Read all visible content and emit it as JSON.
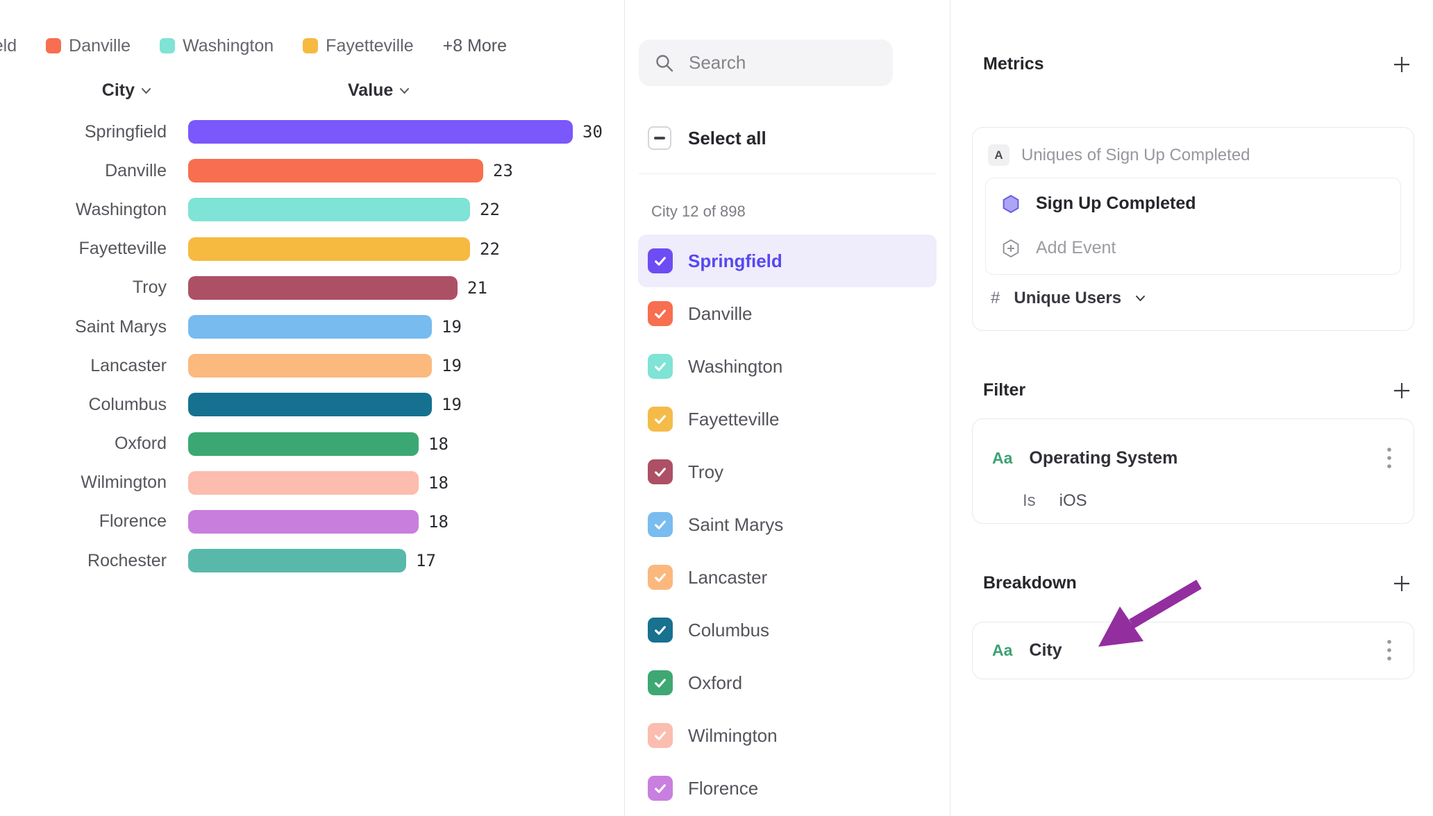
{
  "legend": {
    "items": [
      {
        "label": "Springfield",
        "color": "#7A58FB",
        "clipped": true
      },
      {
        "label": "Danville",
        "color": "#F76E50",
        "clipped": false
      },
      {
        "label": "Washington",
        "color": "#7FE3D5",
        "clipped": false
      },
      {
        "label": "Fayetteville",
        "color": "#F6BA41",
        "clipped": false
      }
    ],
    "more_label": "+8 More"
  },
  "chart_data": {
    "type": "bar",
    "orientation": "horizontal",
    "columns": {
      "category": "City",
      "value": "Value"
    },
    "categories": [
      "Springfield",
      "Danville",
      "Washington",
      "Fayetteville",
      "Troy",
      "Saint Marys",
      "Lancaster",
      "Columbus",
      "Oxford",
      "Wilmington",
      "Florence",
      "Rochester"
    ],
    "values": [
      30,
      23,
      22,
      22,
      21,
      19,
      19,
      19,
      18,
      18,
      18,
      17
    ],
    "colors": [
      "#7A58FB",
      "#F76E50",
      "#7FE3D5",
      "#F6BA41",
      "#AD5065",
      "#77BBEF",
      "#FBB97E",
      "#15718F",
      "#3BA873",
      "#FCBCAE",
      "#C87EDD",
      "#58B9AB"
    ],
    "xlim": [
      0,
      30
    ],
    "grid": false,
    "title": ""
  },
  "city_panel": {
    "search_placeholder": "Search",
    "select_all_label": "Select all",
    "count_label": "City 12 of 898",
    "items": [
      {
        "label": "Springfield",
        "color": "#6D4DF3",
        "checked": true,
        "selected": true
      },
      {
        "label": "Danville",
        "color": "#F76E50",
        "checked": true,
        "selected": false
      },
      {
        "label": "Washington",
        "color": "#7FE3D5",
        "checked": true,
        "selected": false
      },
      {
        "label": "Fayetteville",
        "color": "#F5BB49",
        "checked": true,
        "selected": false
      },
      {
        "label": "Troy",
        "color": "#AD5065",
        "checked": true,
        "selected": false
      },
      {
        "label": "Saint Marys",
        "color": "#79BCEF",
        "checked": true,
        "selected": false
      },
      {
        "label": "Lancaster",
        "color": "#FAB87D",
        "checked": true,
        "selected": false
      },
      {
        "label": "Columbus",
        "color": "#17718F",
        "checked": true,
        "selected": false
      },
      {
        "label": "Oxford",
        "color": "#3EA873",
        "checked": true,
        "selected": false
      },
      {
        "label": "Wilmington",
        "color": "#FBBDAF",
        "checked": true,
        "selected": false
      },
      {
        "label": "Florence",
        "color": "#C97FDF",
        "checked": true,
        "selected": false
      }
    ]
  },
  "inspector": {
    "metrics": {
      "title": "Metrics",
      "badge": "A",
      "summary": "Uniques of Sign Up Completed",
      "event_name": "Sign Up Completed",
      "add_event_label": "Add Event",
      "hash": "#",
      "measure": "Unique Users"
    },
    "filter": {
      "title": "Filter",
      "aa": "Aa",
      "property": "Operating System",
      "operator": "Is",
      "value": "iOS"
    },
    "breakdown": {
      "title": "Breakdown",
      "aa": "Aa",
      "property": "City"
    }
  },
  "colors": {
    "accent_purple": "#6D4DF3",
    "selected_row_bg": "#EFECFC",
    "selected_text": "#5748F0",
    "annotation_arrow": "#932E9F",
    "aa_green": "#3BA273"
  }
}
